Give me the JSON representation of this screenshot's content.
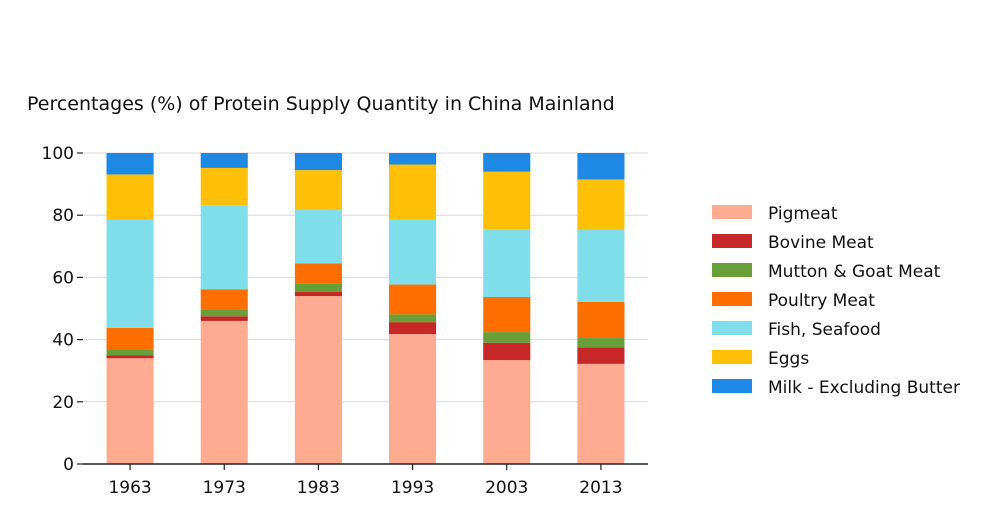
{
  "chart_data": {
    "type": "bar",
    "stacked": true,
    "title": "Percentages (%) of Protein Supply Quantity in China Mainland",
    "xlabel": "",
    "ylabel": "",
    "categories": [
      "1963",
      "1973",
      "1983",
      "1993",
      "2003",
      "2013"
    ],
    "ylim": [
      0,
      100
    ],
    "yticks": [
      "0",
      "20",
      "40",
      "60",
      "80",
      "100"
    ],
    "grid": "horizontal",
    "legend_position": "right",
    "series": [
      {
        "name": "Pigmeat",
        "color": "#ffab91",
        "values": [
          34.0,
          46.0,
          54.0,
          41.8,
          33.4,
          32.2
        ]
      },
      {
        "name": "Bovine Meat",
        "color": "#c62828",
        "values": [
          1.0,
          1.5,
          1.3,
          3.8,
          5.6,
          5.3
        ]
      },
      {
        "name": "Mutton & Goat Meat",
        "color": "#689f38",
        "values": [
          1.8,
          2.2,
          2.7,
          2.5,
          3.4,
          3.0
        ]
      },
      {
        "name": "Poultry Meat",
        "color": "#ff6f00",
        "values": [
          7.0,
          6.5,
          6.5,
          9.6,
          11.3,
          11.6
        ]
      },
      {
        "name": "Fish, Seafood",
        "color": "#80deea",
        "values": [
          34.8,
          27.0,
          17.5,
          20.8,
          21.8,
          23.3
        ]
      },
      {
        "name": "Eggs",
        "color": "#ffc107",
        "values": [
          14.5,
          12.0,
          12.5,
          17.8,
          18.5,
          16.1
        ]
      },
      {
        "name": "Milk - Excluding Butter",
        "color": "#1e88e5",
        "values": [
          6.9,
          4.8,
          5.5,
          3.7,
          6.0,
          8.5
        ]
      }
    ]
  }
}
